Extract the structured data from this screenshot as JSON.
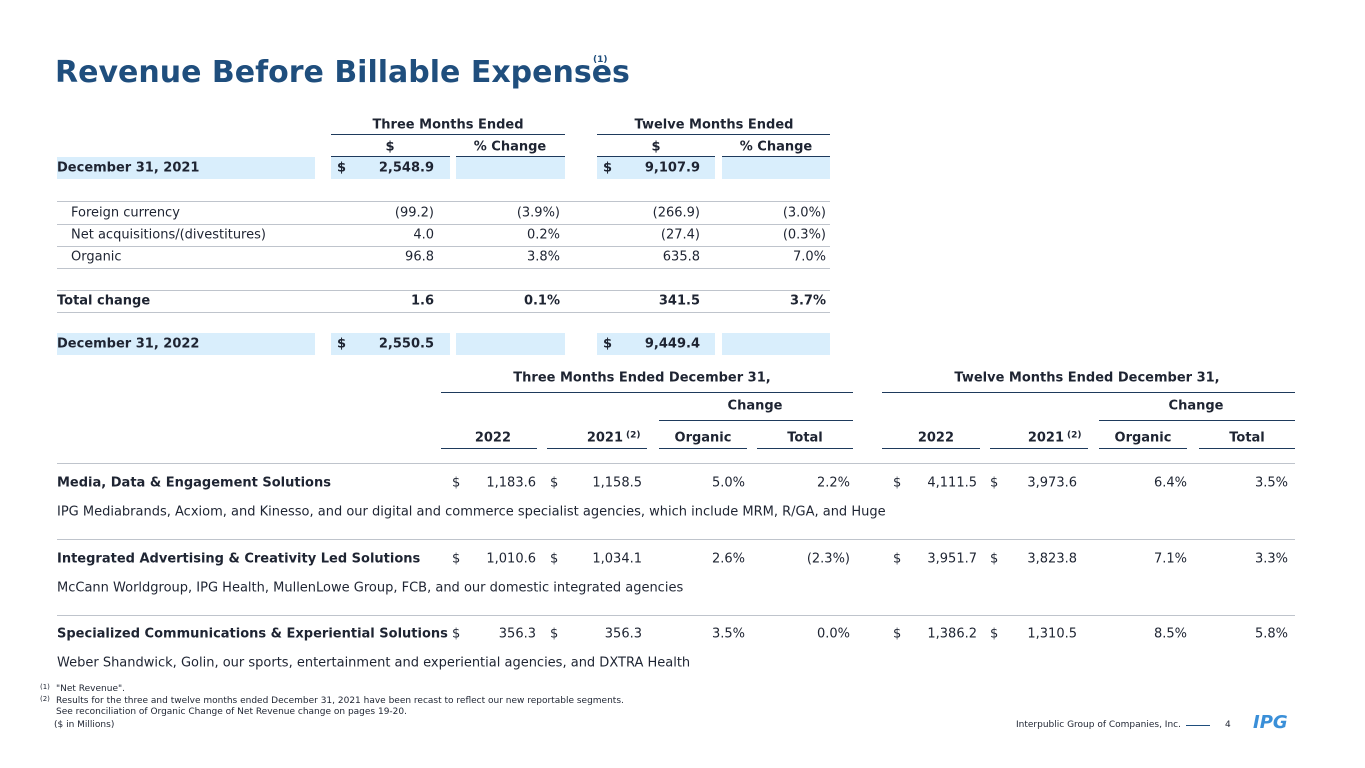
{
  "header": {
    "title": "Revenue Before Billable Expenses",
    "title_note": "(1)"
  },
  "summary_table": {
    "group_headers": [
      "Three Months Ended",
      "Twelve Months Ended"
    ],
    "column_headers": [
      "$",
      "% Change",
      "$",
      "% Change"
    ],
    "rows": [
      {
        "label": "December 31, 2021",
        "three_currency": "$",
        "three_amount": "2,548.9",
        "twelve_currency": "$",
        "twelve_amount": "9,107.9"
      },
      {
        "label": "Foreign currency",
        "three_amount": "(99.2)",
        "three_change": "(3.9%)",
        "twelve_amount": "(266.9)",
        "twelve_change": "(3.0%)"
      },
      {
        "label": "Net acquisitions/(divestitures)",
        "three_amount": "4.0",
        "three_change": "0.2%",
        "twelve_amount": "(27.4)",
        "twelve_change": "(0.3%)"
      },
      {
        "label": "Organic",
        "three_amount": "96.8",
        "three_change": "3.8%",
        "twelve_amount": "635.8",
        "twelve_change": "7.0%"
      },
      {
        "label": "Total change",
        "three_amount": "1.6",
        "three_change": "0.1%",
        "twelve_amount": "341.5",
        "twelve_change": "3.7%"
      },
      {
        "label": "December 31, 2022",
        "three_currency": "$",
        "three_amount": "2,550.5",
        "twelve_currency": "$",
        "twelve_amount": "9,449.4"
      }
    ]
  },
  "segment_table": {
    "group_headers": [
      "Three Months Ended December 31,",
      "Twelve Months Ended December 31,"
    ],
    "change_headers": [
      "Change",
      "Change"
    ],
    "column_headers": [
      "2022",
      "2021",
      "Organic",
      "Total",
      "2022",
      "2021",
      "Organic",
      "Total"
    ],
    "prior_year_notes": [
      "(2)",
      "(2)"
    ],
    "rows": [
      {
        "name": "Media, Data & Engagement Solutions",
        "description": "IPG Mediabrands, Acxiom, and Kinesso, and our digital and commerce specialist agencies, which include MRM, R/GA, and Huge",
        "currency": "$",
        "three": [
          "1,183.6",
          "1,158.5",
          "5.0%",
          "2.2%"
        ],
        "twelve": [
          "4,111.5",
          "3,973.6",
          "6.4%",
          "3.5%"
        ]
      },
      {
        "name": "Integrated Advertising & Creativity Led Solutions",
        "description": "McCann Worldgroup, IPG Health, MullenLowe Group, FCB, and our domestic integrated agencies",
        "currency": "$",
        "three": [
          "1,010.6",
          "1,034.1",
          "2.6%",
          "(2.3%)"
        ],
        "twelve": [
          "3,951.7",
          "3,823.8",
          "7.1%",
          "3.3%"
        ]
      },
      {
        "name": "Specialized Communications & Experiential Solutions",
        "description": "Weber Shandwick, Golin, our sports, entertainment and experiential agencies, and DXTRA Health",
        "currency": "$",
        "three": [
          "356.3",
          "356.3",
          "3.5%",
          "0.0%"
        ],
        "twelve": [
          "1,386.2",
          "1,310.5",
          "8.5%",
          "5.8%"
        ]
      }
    ]
  },
  "footnotes": [
    {
      "marker": "(1)",
      "text": "\"Net Revenue\"."
    },
    {
      "marker": "(2)",
      "text": "Results for the three and twelve months ended December 31, 2021 have been recast to reflect our new reportable segments."
    },
    {
      "text": "See reconciliation of Organic Change of Net Revenue change on pages 19-20."
    }
  ],
  "footer": {
    "units": "($ in Millions)",
    "company": "Interpublic Group of Companies, Inc.",
    "page": "4",
    "logo": "IPG"
  }
}
